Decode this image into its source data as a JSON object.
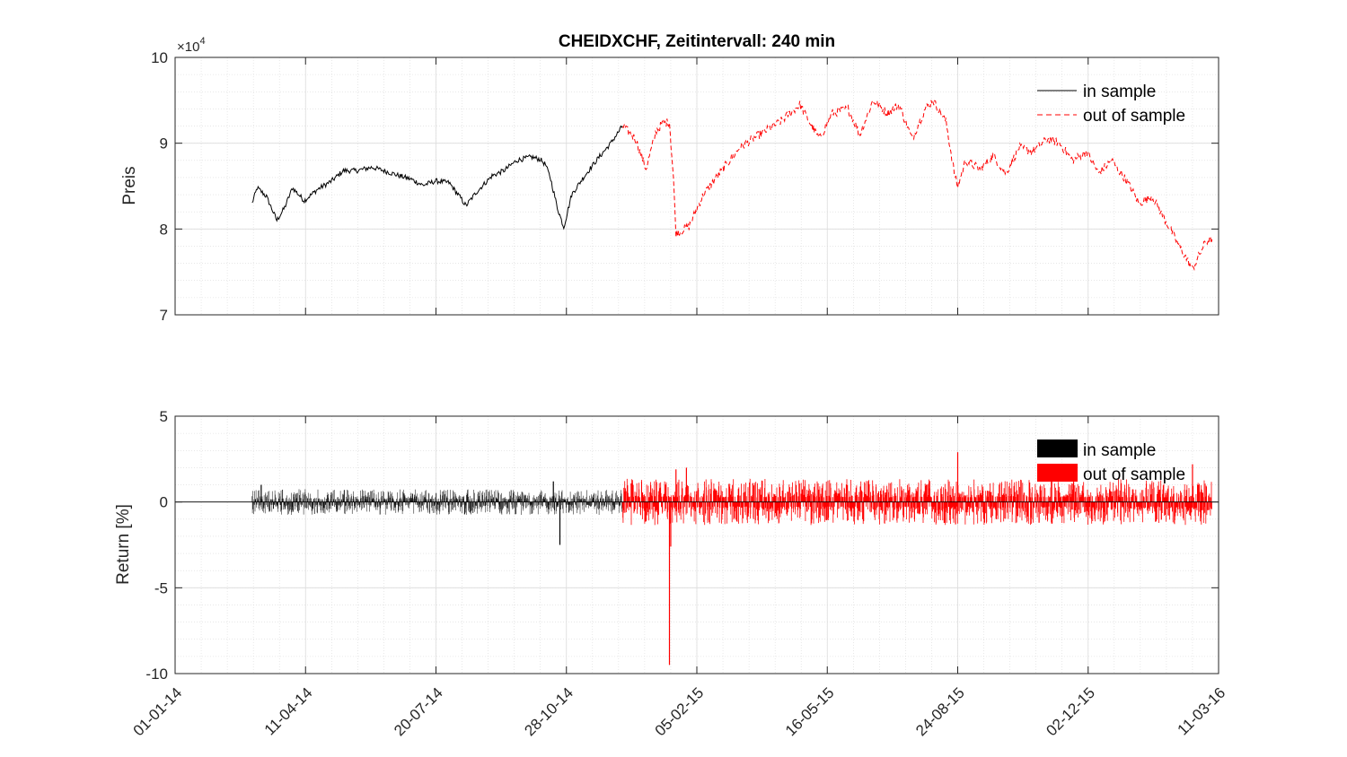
{
  "chart_data": [
    {
      "type": "line",
      "title": "CHEIDXCHF, Zeitintervall: 240 min",
      "ylabel": "Preis",
      "y_multiplier_label": "×10",
      "y_multiplier_exp": "4",
      "ylim": [
        7,
        10
      ],
      "y_ticks": [
        7,
        8,
        9,
        10
      ],
      "x_ticks": [
        "01-01-14",
        "11-04-14",
        "20-07-14",
        "28-10-14",
        "05-02-15",
        "16-05-15",
        "24-08-15",
        "02-12-15",
        "11-03-16"
      ],
      "grid": true,
      "legend_position": "top-right",
      "series": [
        {
          "name": "in sample",
          "color": "#000000",
          "style": "solid",
          "x": [
            "2014-03-01",
            "2014-03-05",
            "2014-03-12",
            "2014-03-20",
            "2014-03-26",
            "2014-04-01",
            "2014-04-10",
            "2014-04-20",
            "2014-05-01",
            "2014-05-10",
            "2014-05-20",
            "2014-06-01",
            "2014-06-10",
            "2014-06-20",
            "2014-07-01",
            "2014-07-10",
            "2014-07-20",
            "2014-07-30",
            "2014-08-08",
            "2014-08-12",
            "2014-08-20",
            "2014-09-01",
            "2014-09-10",
            "2014-09-20",
            "2014-10-01",
            "2014-10-08",
            "2014-10-12",
            "2014-10-16",
            "2014-10-21",
            "2014-10-26",
            "2014-11-01",
            "2014-11-10",
            "2014-11-20",
            "2014-12-01",
            "2014-12-10"
          ],
          "values": [
            83.0,
            84.8,
            83.8,
            81.0,
            82.5,
            84.8,
            83.3,
            84.6,
            85.6,
            86.8,
            86.8,
            87.2,
            86.8,
            86.3,
            85.8,
            85.1,
            85.6,
            85.4,
            83.6,
            82.7,
            84.3,
            86.2,
            86.8,
            88.0,
            88.4,
            88.1,
            87.5,
            85.8,
            82.5,
            80.2,
            84.0,
            86.0,
            88.0,
            90.0,
            92.0
          ]
        },
        {
          "name": "out of sample",
          "color": "#ff0000",
          "style": "dashed",
          "x": [
            "2014-12-10",
            "2014-12-20",
            "2014-12-28",
            "2015-01-05",
            "2015-01-10",
            "2015-01-15",
            "2015-01-18",
            "2015-01-20",
            "2015-01-30",
            "2015-02-10",
            "2015-02-25",
            "2015-03-10",
            "2015-03-25",
            "2015-04-10",
            "2015-04-25",
            "2015-05-01",
            "2015-05-10",
            "2015-05-20",
            "2015-06-01",
            "2015-06-10",
            "2015-06-20",
            "2015-07-01",
            "2015-07-10",
            "2015-07-20",
            "2015-07-30",
            "2015-08-05",
            "2015-08-15",
            "2015-08-22",
            "2015-08-24",
            "2015-08-30",
            "2015-09-10",
            "2015-09-20",
            "2015-09-30",
            "2015-10-10",
            "2015-10-20",
            "2015-11-01",
            "2015-11-10",
            "2015-11-20",
            "2015-12-01",
            "2015-12-10",
            "2015-12-20",
            "2016-01-01",
            "2016-01-10",
            "2016-01-20",
            "2016-02-01",
            "2016-02-10",
            "2016-02-20",
            "2016-03-01",
            "2016-03-06"
          ],
          "values": [
            92.0,
            90.5,
            87.0,
            91.5,
            92.3,
            92.5,
            86.0,
            79.5,
            80.3,
            84.0,
            87.0,
            89.5,
            91.0,
            92.5,
            94.5,
            92.8,
            90.5,
            93.5,
            94.0,
            91.0,
            95.0,
            93.5,
            94.5,
            90.5,
            94.0,
            95.0,
            92.5,
            86.0,
            85.0,
            88.0,
            87.0,
            88.5,
            86.5,
            89.5,
            89.0,
            90.5,
            90.0,
            88.0,
            89.0,
            86.5,
            88.0,
            85.5,
            83.0,
            83.8,
            80.5,
            78.0,
            75.3,
            78.5,
            78.8
          ]
        }
      ]
    },
    {
      "type": "bar",
      "ylabel": "Return [%]",
      "ylim": [
        -10,
        5
      ],
      "y_ticks": [
        -10,
        -5,
        0,
        5
      ],
      "x_ticks": [
        "01-01-14",
        "11-04-14",
        "20-07-14",
        "28-10-14",
        "05-02-15",
        "16-05-15",
        "24-08-15",
        "02-12-15",
        "11-03-16"
      ],
      "grid": true,
      "legend_position": "top-right",
      "series": [
        {
          "name": "in sample",
          "color": "#000000",
          "typical_amplitude": 0.5,
          "x_range": [
            "2014-03-01",
            "2014-12-10"
          ],
          "notable_x": [
            "2014-10-23",
            "2014-10-18",
            "2014-03-08"
          ],
          "notable_values": [
            -2.5,
            1.2,
            1.0
          ]
        },
        {
          "name": "out of sample",
          "color": "#ff0000",
          "typical_amplitude": 0.9,
          "x_range": [
            "2014-12-10",
            "2016-03-06"
          ],
          "notable_x": [
            "2015-01-15",
            "2015-01-16",
            "2015-01-20",
            "2015-08-24",
            "2016-02-20",
            "2015-01-28"
          ],
          "notable_values": [
            -9.5,
            -2.6,
            1.9,
            2.9,
            2.2,
            2.0
          ]
        }
      ]
    }
  ]
}
